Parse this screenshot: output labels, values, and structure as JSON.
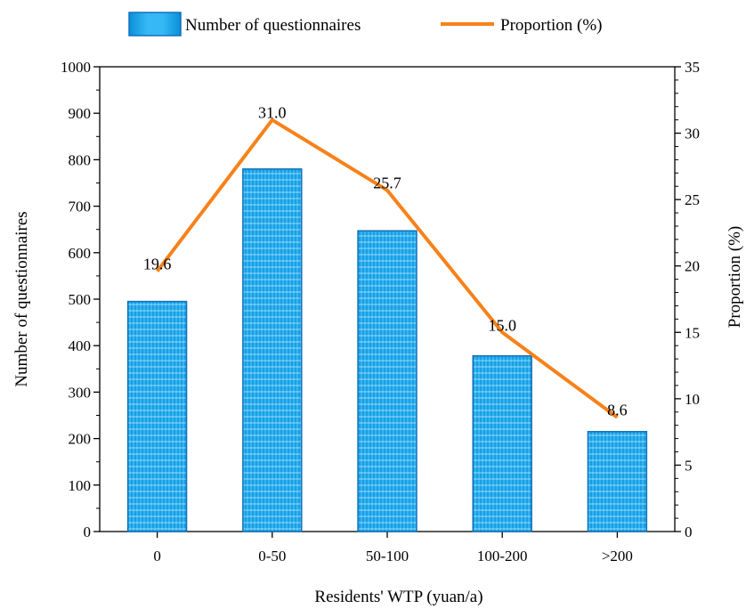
{
  "chart_data": {
    "type": "bar",
    "categories": [
      "0",
      "0-50",
      "50-100",
      "100-200",
      ">200"
    ],
    "series": [
      {
        "name": "Number of questionnaires",
        "type": "bar",
        "axis": "left",
        "values": [
          495,
          780,
          647,
          378,
          215
        ],
        "color": "#29aef0"
      },
      {
        "name": "Proportion (%)",
        "type": "line",
        "axis": "right",
        "values": [
          19.6,
          31.0,
          25.7,
          15.0,
          8.6
        ],
        "labels": [
          "19.6",
          "31.0",
          "25.7",
          "15.0",
          "8.6"
        ],
        "color": "#f7821b"
      }
    ],
    "xlabel": "Residents' WTP (yuan/a)",
    "ylabel": "Number of questionnaires",
    "y2label": "Proportion (%)",
    "ylim": [
      0,
      1000
    ],
    "y2lim": [
      0,
      35
    ],
    "yticks": [
      "0",
      "100",
      "200",
      "300",
      "400",
      "500",
      "600",
      "700",
      "800",
      "900",
      "1000"
    ],
    "y2ticks": [
      "0",
      "5",
      "10",
      "15",
      "20",
      "25",
      "30",
      "35"
    ],
    "grid": false,
    "legend": "top-center"
  }
}
